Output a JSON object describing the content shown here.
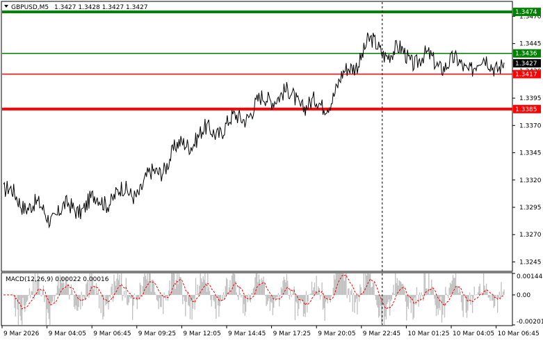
{
  "header": {
    "symbol_label": "GBPUSD,M5",
    "ohlc_label": "1.3427 1.3428 1.3427 1.3427"
  },
  "price_axis": {
    "ticks": [
      "1.3470",
      "1.3445",
      "1.3420",
      "1.3395",
      "1.3370",
      "1.3345",
      "1.3320",
      "1.3295",
      "1.3270",
      "1.3245"
    ],
    "min": 1.3237,
    "max": 1.3483
  },
  "levels": [
    {
      "price": 1.3474,
      "label": "1.3474",
      "color": "#008000",
      "weight": "thick"
    },
    {
      "price": 1.3436,
      "label": "1.3436",
      "color": "#008000",
      "weight": "thin"
    },
    {
      "price": 1.3417,
      "label": "1.3417",
      "color": "#ff0000",
      "weight": "thin"
    },
    {
      "price": 1.3385,
      "label": "1.3385",
      "color": "#ff0000",
      "weight": "thick"
    }
  ],
  "current_price": {
    "price": 1.3427,
    "label": "1.3427",
    "color": "#000000"
  },
  "macd": {
    "label": "MACD(12,26,9) 0.00022 0.00016",
    "ticks": [
      "0.00144",
      "0.00",
      "-0.00201"
    ],
    "min": -0.00201,
    "max": 0.00144
  },
  "time_axis": {
    "labels": [
      "9 Mar 2026",
      "9 Mar 04:05",
      "9 Mar 06:45",
      "9 Mar 09:25",
      "9 Mar 12:05",
      "9 Mar 14:45",
      "9 Mar 17:25",
      "9 Mar 20:05",
      "9 Mar 22:45",
      "10 Mar 01:25",
      "10 Mar 04:05",
      "10 Mar 06:45"
    ]
  },
  "chart_data": {
    "type": "line",
    "title": "GBPUSD,M5",
    "x": [
      "9 Mar 2026",
      "9 Mar 04:05",
      "9 Mar 06:45",
      "9 Mar 09:25",
      "9 Mar 12:05",
      "9 Mar 14:45",
      "9 Mar 17:25",
      "9 Mar 20:05",
      "9 Mar 22:45",
      "10 Mar 01:25",
      "10 Mar 04:05",
      "10 Mar 06:45"
    ],
    "series": [
      {
        "values": [
          1.331,
          1.3288,
          1.33,
          1.3312,
          1.3355,
          1.3372,
          1.34,
          1.3386,
          1.3444,
          1.3432,
          1.3425,
          1.3428
        ]
      }
    ],
    "ylim": [
      1.3237,
      1.3483
    ],
    "grid": true
  },
  "colors": {
    "price_line": "#000000",
    "macd_histogram": "#c0c0c0",
    "macd_signal": "#ff0000",
    "axis": "#000000",
    "vline": "#000000"
  }
}
